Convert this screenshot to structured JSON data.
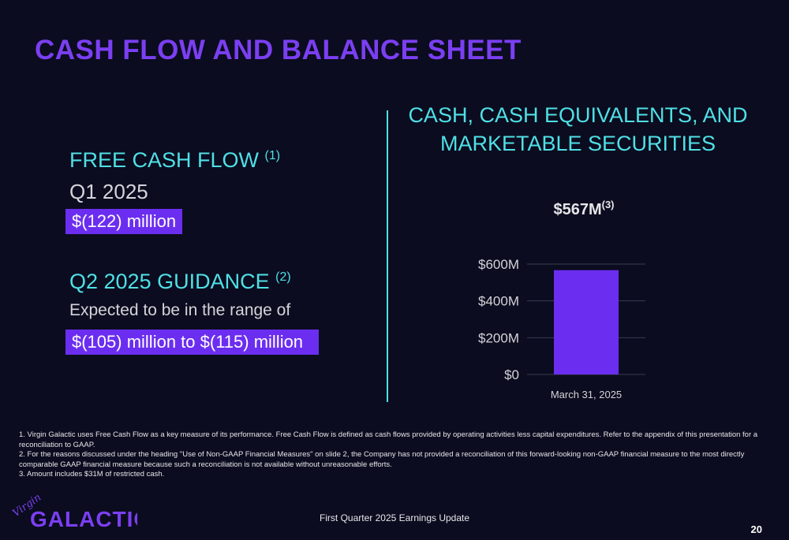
{
  "title": "CASH FLOW AND BALANCE SHEET",
  "fcf": {
    "heading": "FREE CASH FLOW",
    "note": "(1)",
    "period": "Q1 2025",
    "value": "$(122) million"
  },
  "guidance": {
    "heading": "Q2 2025 GUIDANCE",
    "note": "(2)",
    "text": "Expected to be in the range of",
    "value": "$(105) million to $(115) million"
  },
  "chart_data": {
    "type": "bar",
    "title": "CASH, CASH EQUIVALENTS, AND MARKETABLE SECURITIES",
    "categories": [
      "March 31, 2025"
    ],
    "values": [
      567
    ],
    "unit": "$M",
    "data_label": "$567M",
    "data_label_note": "(3)",
    "yticks": [
      "$600M",
      "$400M",
      "$200M",
      "$0"
    ],
    "ytick_values": [
      600,
      400,
      200,
      0
    ],
    "ylim": [
      0,
      600
    ],
    "grid": true,
    "bar_color": "#6b2ef0"
  },
  "footnotes": [
    "1. Virgin Galactic uses Free Cash Flow as a key measure of its performance. Free Cash Flow is defined as cash flows provided by operating activities less capital expenditures. Refer to the appendix of this presentation for a reconciliation to GAAP.",
    "2. For the reasons discussed under the heading \"Use of Non-GAAP Financial Measures\" on slide 2, the Company has not provided a reconciliation of this forward-looking non-GAAP financial measure to the most directly comparable GAAP financial measure because such a  reconciliation is not available without unreasonable efforts.",
    "3. Amount includes $31M of restricted cash."
  ],
  "logo": {
    "script": "Virgin",
    "word": "GALACTIC"
  },
  "footer": "First Quarter 2025 Earnings Update",
  "page_number": "20",
  "colors": {
    "accent_purple": "#6b2ef0",
    "title_purple": "#7b3ff2",
    "cyan": "#4fe0e6",
    "background": "#0b0c1f"
  }
}
